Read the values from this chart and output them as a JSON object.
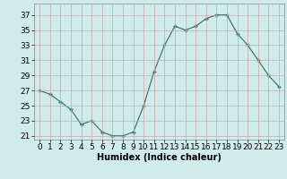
{
  "x": [
    0,
    1,
    2,
    3,
    4,
    5,
    6,
    7,
    8,
    9,
    10,
    11,
    12,
    13,
    14,
    15,
    16,
    17,
    18,
    19,
    20,
    21,
    22,
    23
  ],
  "y": [
    27,
    26.5,
    25.5,
    24.5,
    22.5,
    23,
    21.5,
    21,
    21,
    21.5,
    25,
    29.5,
    33,
    35.5,
    35,
    35.5,
    36.5,
    37,
    37,
    34.5,
    33,
    31,
    29,
    27.5
  ],
  "line_color": "#2e6e62",
  "marker_color": "#2e6e62",
  "bg_color": "#d0ecea",
  "grid_color": "#c0d8d6",
  "xlabel": "Humidex (Indice chaleur)",
  "ylim": [
    20.5,
    38.5
  ],
  "xlim": [
    -0.5,
    23.5
  ],
  "yticks": [
    21,
    23,
    25,
    27,
    29,
    31,
    33,
    35,
    37
  ],
  "xtick_labels": [
    "0",
    "1",
    "2",
    "3",
    "4",
    "5",
    "6",
    "7",
    "8",
    "9",
    "10",
    "11",
    "12",
    "13",
    "14",
    "15",
    "16",
    "17",
    "18",
    "19",
    "20",
    "21",
    "22",
    "23"
  ],
  "label_fontsize": 7,
  "tick_fontsize": 6.5
}
